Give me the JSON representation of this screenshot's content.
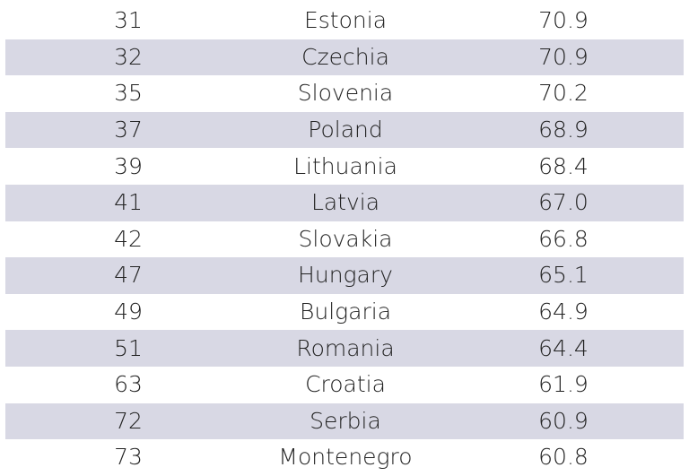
{
  "colors": {
    "stripe": "#d8d8e4",
    "text": "#222222"
  },
  "rows": [
    {
      "rank": "31",
      "country": "Estonia",
      "score": "70.9"
    },
    {
      "rank": "32",
      "country": "Czechia",
      "score": "70.9"
    },
    {
      "rank": "35",
      "country": "Slovenia",
      "score": "70.2"
    },
    {
      "rank": "37",
      "country": "Poland",
      "score": "68.9"
    },
    {
      "rank": "39",
      "country": "Lithuania",
      "score": "68.4"
    },
    {
      "rank": "41",
      "country": "Latvia",
      "score": "67.0"
    },
    {
      "rank": "42",
      "country": "Slovakia",
      "score": "66.8"
    },
    {
      "rank": "47",
      "country": "Hungary",
      "score": "65.1"
    },
    {
      "rank": "49",
      "country": "Bulgaria",
      "score": "64.9"
    },
    {
      "rank": "51",
      "country": "Romania",
      "score": "64.4"
    },
    {
      "rank": "63",
      "country": "Croatia",
      "score": "61.9"
    },
    {
      "rank": "72",
      "country": "Serbia",
      "score": "60.9"
    },
    {
      "rank": "73",
      "country": "Montenegro",
      "score": "60.8"
    }
  ]
}
